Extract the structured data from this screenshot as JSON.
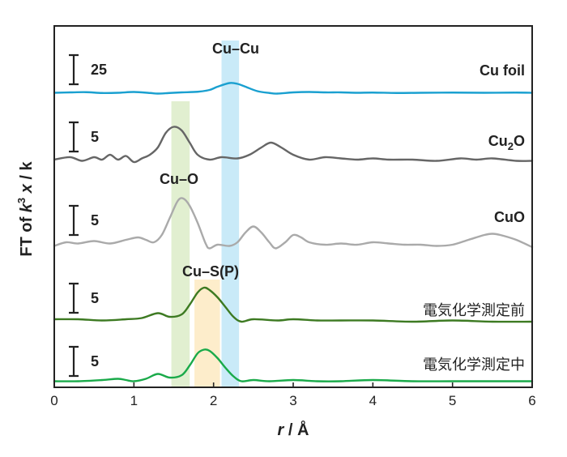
{
  "chart_data": {
    "type": "line",
    "xlabel_italic": "r",
    "xlabel_rest": " / Å",
    "ylabel_prefix": "FT of ",
    "ylabel_k": "k",
    "ylabel_exp": "3",
    "ylabel_chi": " x",
    "ylabel_suffix": " / k",
    "xlim": [
      0,
      6
    ],
    "xticks": [
      "0",
      "1",
      "2",
      "3",
      "4",
      "5",
      "6"
    ],
    "bands": [
      {
        "label": "Cu–O",
        "x0": 1.47,
        "x1": 1.7,
        "color": "#dcecc8"
      },
      {
        "label": "Cu–S(P)",
        "x0": 1.76,
        "x1": 2.08,
        "color": "#fdeac2"
      },
      {
        "label": "Cu–Cu",
        "x0": 2.1,
        "x1": 2.32,
        "color": "#bfe6f7"
      }
    ],
    "series": [
      {
        "name": "Cu foil",
        "color": "#1aa0d0",
        "scale": "25",
        "baseline": 115,
        "unit": 0.5,
        "points": [
          [
            0,
            1.0
          ],
          [
            0.2,
            2.0
          ],
          [
            0.4,
            2.5
          ],
          [
            0.6,
            0.5
          ],
          [
            0.8,
            1.0
          ],
          [
            1.0,
            3.0
          ],
          [
            1.2,
            0.5
          ],
          [
            1.3,
            -1.0
          ],
          [
            1.45,
            0.5
          ],
          [
            1.6,
            2.0
          ],
          [
            1.8,
            3.5
          ],
          [
            1.95,
            8.0
          ],
          [
            2.05,
            16.0
          ],
          [
            2.2,
            25.0
          ],
          [
            2.3,
            23.0
          ],
          [
            2.4,
            16.0
          ],
          [
            2.55,
            5.0
          ],
          [
            2.7,
            0.5
          ],
          [
            2.8,
            -1.0
          ],
          [
            3.0,
            2.0
          ],
          [
            3.2,
            3.0
          ],
          [
            3.4,
            2.0
          ],
          [
            3.6,
            2.0
          ],
          [
            3.8,
            1.0
          ],
          [
            4.0,
            1.5
          ],
          [
            4.3,
            0.5
          ],
          [
            4.6,
            1.0
          ],
          [
            5.0,
            1.5
          ],
          [
            5.4,
            1.0
          ],
          [
            5.8,
            1.5
          ],
          [
            6.0,
            1.0
          ]
        ]
      },
      {
        "name": "Cu2O",
        "color": "#666666",
        "scale": "5",
        "baseline": 200,
        "unit": 3.0,
        "points": [
          [
            0,
            1.0
          ],
          [
            0.2,
            2.0
          ],
          [
            0.35,
            0.5
          ],
          [
            0.5,
            2.0
          ],
          [
            0.6,
            1.0
          ],
          [
            0.7,
            3.0
          ],
          [
            0.8,
            1.0
          ],
          [
            0.9,
            2.5
          ],
          [
            1.0,
            0.0
          ],
          [
            1.1,
            1.5
          ],
          [
            1.2,
            3.0
          ],
          [
            1.3,
            6.0
          ],
          [
            1.4,
            12.0
          ],
          [
            1.5,
            14.5
          ],
          [
            1.6,
            13.0
          ],
          [
            1.7,
            8.0
          ],
          [
            1.8,
            3.0
          ],
          [
            1.95,
            1.0
          ],
          [
            2.1,
            2.0
          ],
          [
            2.3,
            1.5
          ],
          [
            2.45,
            3.0
          ],
          [
            2.6,
            6.0
          ],
          [
            2.72,
            8.0
          ],
          [
            2.85,
            6.0
          ],
          [
            3.0,
            3.0
          ],
          [
            3.2,
            1.0
          ],
          [
            3.4,
            2.0
          ],
          [
            3.6,
            1.5
          ],
          [
            3.8,
            1.0
          ],
          [
            4.0,
            1.5
          ],
          [
            4.2,
            1.0
          ],
          [
            4.5,
            1.0
          ],
          [
            4.8,
            0.5
          ],
          [
            5.1,
            1.5
          ],
          [
            5.3,
            1.0
          ],
          [
            5.5,
            1.5
          ],
          [
            5.8,
            0.5
          ],
          [
            6.0,
            0.5
          ]
        ]
      },
      {
        "name": "CuO",
        "color": "#aaaaaa",
        "scale": "5",
        "baseline": 305,
        "unit": 3.0,
        "points": [
          [
            0,
            0.5
          ],
          [
            0.15,
            2.0
          ],
          [
            0.3,
            1.5
          ],
          [
            0.5,
            2.5
          ],
          [
            0.7,
            1.5
          ],
          [
            0.9,
            3.0
          ],
          [
            1.05,
            4.0
          ],
          [
            1.15,
            3.0
          ],
          [
            1.25,
            2.0
          ],
          [
            1.35,
            5.0
          ],
          [
            1.45,
            12.0
          ],
          [
            1.55,
            19.0
          ],
          [
            1.62,
            20.0
          ],
          [
            1.7,
            17.0
          ],
          [
            1.8,
            10.0
          ],
          [
            1.9,
            1.5
          ],
          [
            1.95,
            -0.5
          ],
          [
            2.05,
            1.0
          ],
          [
            2.2,
            0.5
          ],
          [
            2.3,
            2.0
          ],
          [
            2.4,
            6.0
          ],
          [
            2.5,
            8.5
          ],
          [
            2.6,
            6.0
          ],
          [
            2.7,
            2.0
          ],
          [
            2.78,
            -0.5
          ],
          [
            2.9,
            2.0
          ],
          [
            3.0,
            5.0
          ],
          [
            3.1,
            4.0
          ],
          [
            3.2,
            2.0
          ],
          [
            3.4,
            1.0
          ],
          [
            3.6,
            1.5
          ],
          [
            3.8,
            1.0
          ],
          [
            4.0,
            2.0
          ],
          [
            4.2,
            1.5
          ],
          [
            4.4,
            1.0
          ],
          [
            4.6,
            1.0
          ],
          [
            4.8,
            0.5
          ],
          [
            5.0,
            1.0
          ],
          [
            5.2,
            3.0
          ],
          [
            5.4,
            5.0
          ],
          [
            5.5,
            5.5
          ],
          [
            5.6,
            5.0
          ],
          [
            5.8,
            3.0
          ],
          [
            6.0,
            0.0
          ]
        ]
      },
      {
        "name": "電気化学測定前",
        "color": "#3d7a22",
        "scale": "5",
        "baseline": 397,
        "unit": 3.0,
        "points": [
          [
            0,
            1.0
          ],
          [
            0.3,
            1.0
          ],
          [
            0.6,
            0.5
          ],
          [
            0.9,
            1.0
          ],
          [
            1.1,
            1.5
          ],
          [
            1.3,
            3.5
          ],
          [
            1.45,
            2.0
          ],
          [
            1.6,
            3.0
          ],
          [
            1.7,
            7.0
          ],
          [
            1.8,
            12.0
          ],
          [
            1.88,
            14.0
          ],
          [
            1.95,
            13.0
          ],
          [
            2.05,
            10.0
          ],
          [
            2.15,
            6.0
          ],
          [
            2.25,
            2.0
          ],
          [
            2.35,
            0.0
          ],
          [
            2.5,
            1.0
          ],
          [
            2.8,
            0.5
          ],
          [
            3.0,
            1.0
          ],
          [
            3.3,
            0.5
          ],
          [
            3.6,
            0.5
          ],
          [
            4.0,
            0.5
          ],
          [
            4.5,
            0.0
          ],
          [
            5.0,
            0.5
          ],
          [
            5.5,
            0.0
          ],
          [
            6.0,
            0.0
          ]
        ]
      },
      {
        "name": "電気化学測定中",
        "color": "#1aaa4a",
        "scale": "5",
        "baseline": 472,
        "unit": 3.0,
        "points": [
          [
            0,
            0.5
          ],
          [
            0.3,
            0.5
          ],
          [
            0.6,
            1.0
          ],
          [
            0.8,
            1.5
          ],
          [
            0.9,
            1.0
          ],
          [
            1.0,
            0.5
          ],
          [
            1.15,
            1.5
          ],
          [
            1.3,
            3.5
          ],
          [
            1.45,
            2.0
          ],
          [
            1.6,
            3.0
          ],
          [
            1.7,
            7.0
          ],
          [
            1.8,
            12.0
          ],
          [
            1.88,
            13.5
          ],
          [
            1.95,
            13.0
          ],
          [
            2.05,
            10.0
          ],
          [
            2.15,
            6.0
          ],
          [
            2.25,
            2.5
          ],
          [
            2.35,
            0.5
          ],
          [
            2.5,
            1.0
          ],
          [
            2.7,
            0.5
          ],
          [
            3.0,
            1.0
          ],
          [
            3.3,
            0.5
          ],
          [
            3.6,
            0.5
          ],
          [
            4.0,
            1.0
          ],
          [
            4.5,
            0.5
          ],
          [
            5.0,
            0.5
          ],
          [
            5.5,
            0.5
          ],
          [
            6.0,
            0.5
          ]
        ]
      }
    ]
  }
}
